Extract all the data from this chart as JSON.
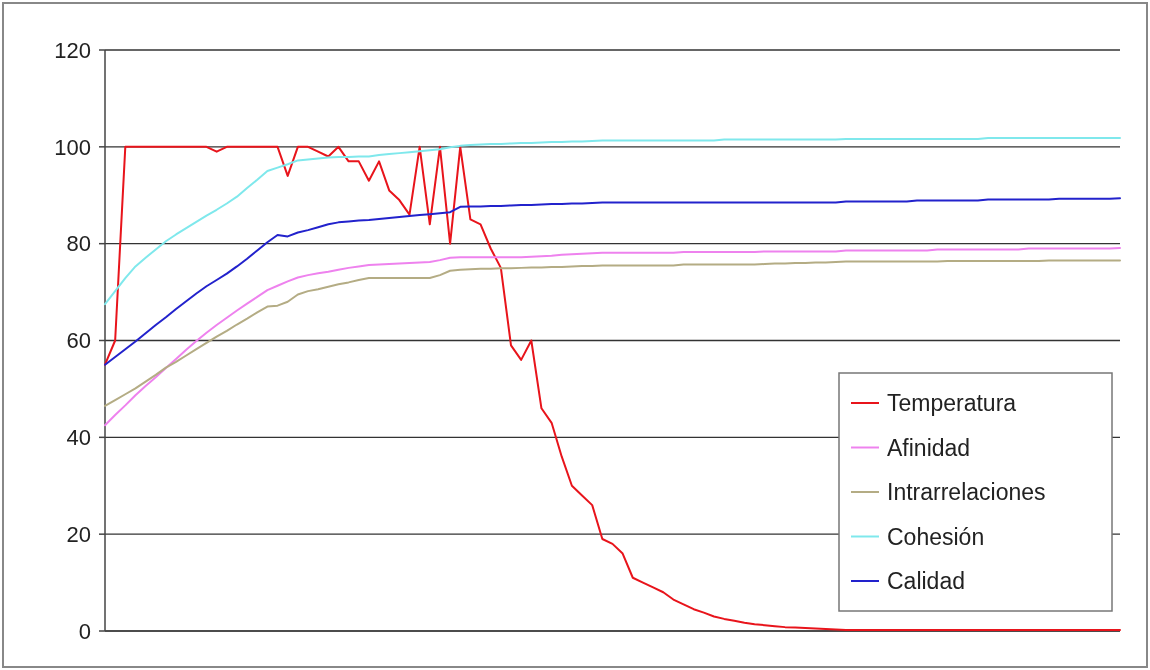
{
  "chart_data": {
    "type": "line",
    "categories": [
      null,
      null,
      null,
      null,
      null,
      null,
      null,
      null,
      null,
      null,
      null,
      null,
      null,
      null,
      null,
      null,
      null,
      null,
      null,
      null,
      null,
      null,
      null,
      null,
      null,
      null,
      null,
      null,
      null,
      null,
      null,
      null,
      null,
      null,
      null,
      null,
      null,
      null,
      null,
      null,
      null,
      null,
      null,
      null,
      null,
      null,
      null,
      null,
      null,
      null,
      null,
      null,
      null,
      null,
      null,
      null,
      null,
      null,
      null,
      null,
      null,
      null,
      null,
      null,
      null,
      null,
      null,
      null,
      null,
      null,
      null,
      null,
      null,
      null,
      null,
      null,
      null,
      null,
      null,
      null,
      null,
      null,
      null,
      null,
      null,
      null,
      null,
      null,
      null,
      null,
      null,
      null,
      null,
      null,
      null,
      null,
      null,
      null,
      null,
      null,
      null
    ],
    "ylim": [
      0,
      120
    ],
    "yticks": [
      0,
      20,
      40,
      60,
      80,
      100,
      120
    ],
    "tick_labels": "y",
    "grid": "y",
    "legend": "bottom right",
    "marker": "none",
    "line_style": "solid",
    "series": [
      {
        "name": "Temperatura",
        "color": "#e8141b",
        "values": [
          55,
          60,
          100,
          100,
          100,
          100,
          100,
          100,
          100,
          100,
          100,
          99,
          100,
          100,
          100,
          100,
          100,
          100,
          94,
          100,
          100,
          99,
          98,
          100,
          97,
          97,
          93,
          97,
          91,
          89,
          86,
          100,
          84,
          100,
          80,
          100,
          85,
          84,
          79,
          75,
          59,
          56,
          60,
          46,
          43,
          36,
          30,
          28,
          26,
          19,
          18,
          16,
          11,
          10,
          9,
          8,
          6.5,
          5.5,
          4.5,
          3.8,
          3,
          2.5,
          2.1,
          1.7,
          1.4,
          1.2,
          1,
          0.8,
          0.7,
          0.6,
          0.5,
          0.4,
          0.3,
          0.2,
          0.2,
          0.2,
          0.2,
          0.2,
          0.2,
          0.2,
          0.2,
          0.2,
          0.2,
          0.2,
          0.2,
          0.2,
          0.2,
          0.2,
          0.2,
          0.2,
          0.2,
          0.2,
          0.2,
          0.2,
          0.2,
          0.2,
          0.2,
          0.2,
          0.2,
          0.2,
          0.2
        ]
      },
      {
        "name": "Afinidad",
        "color": "#ee82ee",
        "values": [
          42.5,
          44.6,
          46.6,
          48.7,
          50.6,
          52.4,
          54.3,
          56.2,
          58.1,
          59.9,
          61.6,
          63.2,
          64.7,
          66.2,
          67.6,
          69,
          70.4,
          71.3,
          72.2,
          73,
          73.5,
          73.9,
          74.2,
          74.6,
          75,
          75.3,
          75.6,
          75.7,
          75.8,
          75.9,
          76,
          76.1,
          76.2,
          76.6,
          77.1,
          77.2,
          77.2,
          77.2,
          77.2,
          77.2,
          77.2,
          77.2,
          77.3,
          77.4,
          77.5,
          77.7,
          77.8,
          77.9,
          78,
          78.1,
          78.1,
          78.1,
          78.1,
          78.1,
          78.1,
          78.1,
          78.1,
          78.3,
          78.3,
          78.3,
          78.3,
          78.3,
          78.3,
          78.3,
          78.3,
          78.4,
          78.4,
          78.4,
          78.4,
          78.4,
          78.4,
          78.4,
          78.4,
          78.6,
          78.6,
          78.6,
          78.6,
          78.6,
          78.6,
          78.6,
          78.6,
          78.6,
          78.8,
          78.8,
          78.8,
          78.8,
          78.8,
          78.8,
          78.8,
          78.8,
          78.8,
          79,
          79,
          79,
          79,
          79,
          79,
          79,
          79,
          79,
          79.1
        ]
      },
      {
        "name": "Intrarrelaciones",
        "color": "#b4ac84",
        "values": [
          46.5,
          47.7,
          48.9,
          50.1,
          51.5,
          52.9,
          54.4,
          55.6,
          56.9,
          58.2,
          59.5,
          60.8,
          62,
          63.3,
          64.5,
          65.8,
          67,
          67.2,
          68,
          69.5,
          70.2,
          70.6,
          71.1,
          71.6,
          72,
          72.5,
          72.9,
          72.9,
          72.9,
          72.9,
          72.9,
          72.9,
          72.9,
          73.5,
          74.4,
          74.6,
          74.7,
          74.8,
          74.8,
          74.9,
          74.9,
          75,
          75.1,
          75.1,
          75.2,
          75.2,
          75.3,
          75.4,
          75.4,
          75.5,
          75.5,
          75.5,
          75.5,
          75.5,
          75.5,
          75.5,
          75.5,
          75.7,
          75.7,
          75.7,
          75.7,
          75.7,
          75.7,
          75.7,
          75.7,
          75.8,
          75.9,
          75.9,
          76,
          76,
          76.1,
          76.1,
          76.2,
          76.3,
          76.3,
          76.3,
          76.3,
          76.3,
          76.3,
          76.3,
          76.3,
          76.3,
          76.3,
          76.4,
          76.4,
          76.4,
          76.4,
          76.4,
          76.4,
          76.4,
          76.4,
          76.4,
          76.4,
          76.5,
          76.5,
          76.5,
          76.5,
          76.5,
          76.5,
          76.5,
          76.5
        ]
      },
      {
        "name": "Cohesión",
        "color": "#7fe8ec",
        "values": [
          67.5,
          70.2,
          72.9,
          75.3,
          77.1,
          78.8,
          80.5,
          81.9,
          83.2,
          84.5,
          85.8,
          87,
          88.3,
          89.7,
          91.5,
          93.2,
          95,
          95.7,
          96.4,
          97.2,
          97.4,
          97.6,
          97.8,
          97.9,
          97.9,
          98,
          98,
          98.3,
          98.5,
          98.7,
          98.9,
          99.1,
          99.3,
          99.5,
          99.9,
          100.2,
          100.4,
          100.5,
          100.6,
          100.6,
          100.7,
          100.8,
          100.8,
          100.9,
          101,
          101,
          101.1,
          101.1,
          101.2,
          101.3,
          101.3,
          101.3,
          101.3,
          101.3,
          101.3,
          101.3,
          101.3,
          101.3,
          101.3,
          101.3,
          101.3,
          101.5,
          101.5,
          101.5,
          101.5,
          101.5,
          101.5,
          101.5,
          101.5,
          101.5,
          101.5,
          101.5,
          101.5,
          101.6,
          101.6,
          101.6,
          101.6,
          101.6,
          101.6,
          101.6,
          101.6,
          101.6,
          101.6,
          101.6,
          101.6,
          101.6,
          101.6,
          101.8,
          101.8,
          101.8,
          101.8,
          101.8,
          101.8,
          101.8,
          101.8,
          101.8,
          101.8,
          101.8,
          101.8,
          101.8,
          101.8
        ]
      },
      {
        "name": "Calidad",
        "color": "#2222cc",
        "values": [
          55,
          56.6,
          58.2,
          59.8,
          61.5,
          63.2,
          64.8,
          66.5,
          68.1,
          69.7,
          71.2,
          72.5,
          73.8,
          75.3,
          76.9,
          78.6,
          80.3,
          81.8,
          81.5,
          82.3,
          82.8,
          83.4,
          84,
          84.4,
          84.6,
          84.8,
          84.9,
          85.1,
          85.3,
          85.5,
          85.7,
          85.9,
          86.1,
          86.3,
          86.5,
          87.6,
          87.7,
          87.7,
          87.8,
          87.8,
          87.9,
          88,
          88,
          88.1,
          88.2,
          88.2,
          88.3,
          88.3,
          88.4,
          88.5,
          88.5,
          88.5,
          88.5,
          88.5,
          88.5,
          88.5,
          88.5,
          88.5,
          88.5,
          88.5,
          88.5,
          88.5,
          88.5,
          88.5,
          88.5,
          88.5,
          88.5,
          88.5,
          88.5,
          88.5,
          88.5,
          88.5,
          88.5,
          88.7,
          88.7,
          88.7,
          88.7,
          88.7,
          88.7,
          88.7,
          88.9,
          88.9,
          88.9,
          88.9,
          88.9,
          88.9,
          88.9,
          89.1,
          89.1,
          89.1,
          89.1,
          89.1,
          89.1,
          89.1,
          89.3,
          89.3,
          89.3,
          89.3,
          89.3,
          89.3,
          89.4
        ]
      }
    ]
  }
}
